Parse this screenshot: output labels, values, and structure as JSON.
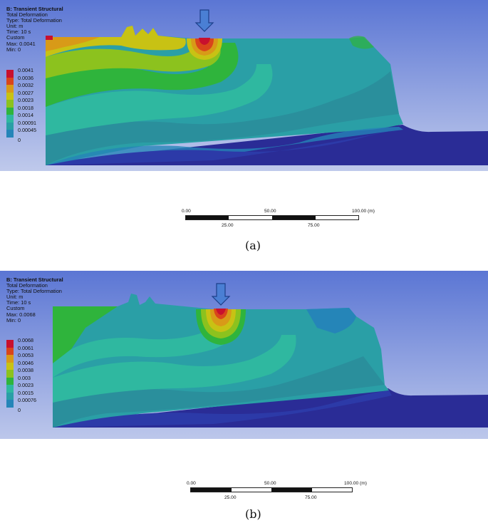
{
  "panels": [
    {
      "caption": "(a)",
      "info": {
        "title": "B: Transient Structural",
        "line1": "Total Deformation",
        "line2": "Type: Total Deformation",
        "line3": "Unit: m",
        "line4": "Time: 10 s",
        "line5": "Custom",
        "line6": "Max: 0.0041",
        "line7": "Min: 0"
      },
      "legend": [
        "0.0041",
        "0.0036",
        "0.0032",
        "0.0027",
        "0.0023",
        "0.0018",
        "0.0014",
        "0.00091",
        "0.00045",
        "0"
      ],
      "scalebar": {
        "t0": "0.00",
        "t1": "50.00",
        "t2": "100.00 (m)",
        "b0": "25.00",
        "b1": "75.00"
      }
    },
    {
      "caption": "(b)",
      "info": {
        "title": "B: Transient Structural",
        "line1": "Total Deformation",
        "line2": "Type: Total Deformation",
        "line3": "Unit: m",
        "line4": "Time: 10 s",
        "line5": "Custom",
        "line6": "Max: 0.0068",
        "line7": "Min: 0"
      },
      "legend": [
        "0.0068",
        "0.0061",
        "0.0053",
        "0.0046",
        "0.0038",
        "0.003",
        "0.0023",
        "0.0015",
        "0.00076",
        "0"
      ],
      "scalebar": {
        "t0": "0.00",
        "t1": "50.00",
        "t2": "100.00 (m)",
        "b0": "25.00",
        "b1": "75.00"
      }
    }
  ],
  "colors": {
    "legend": [
      "#c8102e",
      "#d9451b",
      "#d89a18",
      "#c8c214",
      "#8cc21e",
      "#2fb43c",
      "#2fb8a0",
      "#2a9fa6",
      "#2585b8",
      "#1d24a8"
    ],
    "sea": "#2a2c96",
    "background_top": "#5b76d4",
    "background_bottom": "#e4e8f4"
  },
  "icons": {
    "load_arrow": "down-arrow-icon"
  }
}
